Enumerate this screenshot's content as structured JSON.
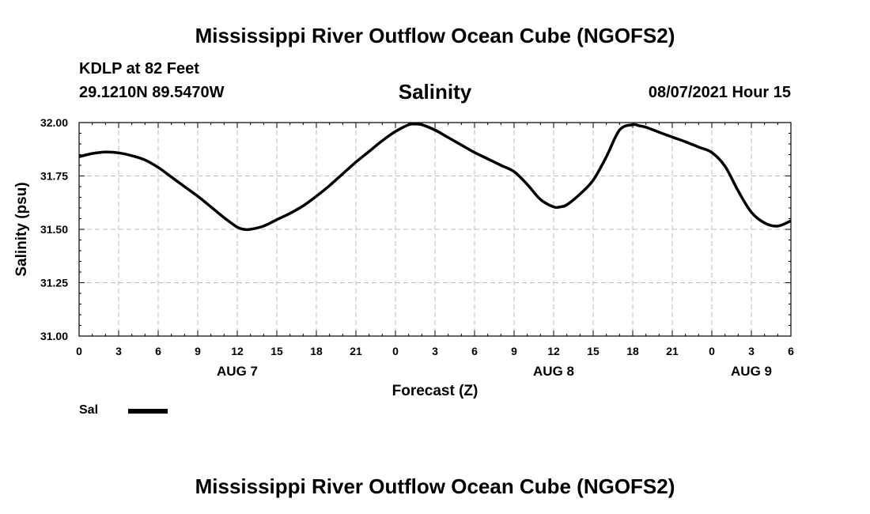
{
  "header": {
    "title": "Mississippi River Outflow Ocean Cube (NGOFS2)",
    "station": "KDLP at 82 Feet",
    "coordinates": "29.1210N  89.5470W",
    "variable": "Salinity",
    "datetime": "08/07/2021 Hour 15"
  },
  "footer": {
    "title": "Mississippi River Outflow Ocean Cube (NGOFS2)"
  },
  "legend": {
    "label": "Sal"
  },
  "colors": {
    "line": "#000000",
    "grid": "#bbbbbb",
    "axis": "#000000"
  },
  "chart_data": {
    "type": "line",
    "title": "Salinity",
    "xlabel": "Forecast (Z)",
    "ylabel": "Salinity (psu)",
    "xlim": [
      0,
      54
    ],
    "ylim": [
      31.0,
      32.0
    ],
    "x_ticks": [
      0,
      3,
      6,
      9,
      12,
      15,
      18,
      21,
      24,
      27,
      30,
      33,
      36,
      39,
      42,
      45,
      48,
      51,
      54
    ],
    "x_tick_labels": [
      "0",
      "3",
      "6",
      "9",
      "12",
      "15",
      "18",
      "21",
      "0",
      "3",
      "6",
      "9",
      "12",
      "15",
      "18",
      "21",
      "0",
      "3",
      "6"
    ],
    "y_ticks": [
      31.0,
      31.25,
      31.5,
      31.75,
      32.0
    ],
    "y_tick_labels": [
      "31.00",
      "31.25",
      "31.50",
      "31.75",
      "32.00"
    ],
    "date_labels": [
      {
        "x": 12,
        "label": "AUG 7"
      },
      {
        "x": 36,
        "label": "AUG 8"
      },
      {
        "x": 51,
        "label": "AUG 9"
      }
    ],
    "grid": true,
    "series": [
      {
        "name": "Sal",
        "x": [
          0,
          1,
          2,
          3,
          4,
          5,
          6,
          7,
          8,
          9,
          10,
          11,
          12,
          12.5,
          13,
          14,
          15,
          16,
          17,
          18,
          19,
          20,
          21,
          22,
          23,
          24,
          25,
          25.5,
          26,
          27,
          28,
          29,
          30,
          31,
          32,
          33,
          34,
          35,
          36,
          36.5,
          37,
          38,
          39,
          40,
          41,
          42,
          42.5,
          43,
          44,
          45,
          46,
          47,
          48,
          49,
          50,
          51,
          52,
          53,
          54
        ],
        "values": [
          31.84,
          31.855,
          31.862,
          31.858,
          31.845,
          31.825,
          31.79,
          31.745,
          31.7,
          31.655,
          31.605,
          31.555,
          31.51,
          31.5,
          31.5,
          31.515,
          31.545,
          31.575,
          31.61,
          31.655,
          31.705,
          31.76,
          31.815,
          31.865,
          31.915,
          31.958,
          31.99,
          31.993,
          31.99,
          31.965,
          31.93,
          31.895,
          31.86,
          31.83,
          31.8,
          31.77,
          31.71,
          31.64,
          31.605,
          31.605,
          31.615,
          31.665,
          31.73,
          31.84,
          31.965,
          31.99,
          31.985,
          31.978,
          31.955,
          31.932,
          31.91,
          31.885,
          31.86,
          31.795,
          31.68,
          31.58,
          31.53,
          31.515,
          31.54
        ]
      }
    ]
  }
}
